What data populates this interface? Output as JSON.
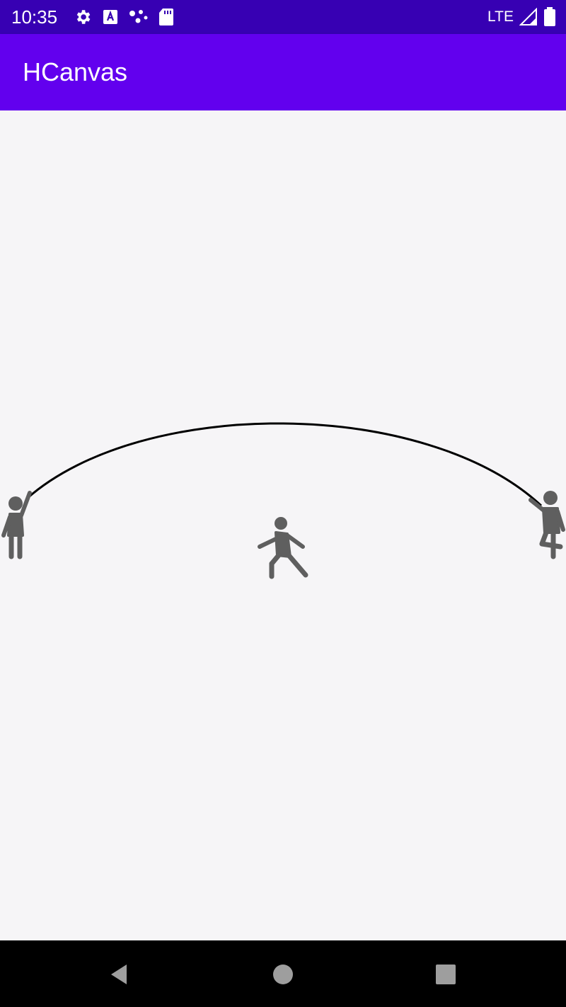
{
  "status_bar": {
    "time": "10:35",
    "network": "LTE",
    "left_icons": [
      "gear-icon",
      "a-badge-icon",
      "share-dots-icon",
      "sd-card-icon"
    ],
    "right_icons": [
      "signal-icon",
      "battery-icon"
    ]
  },
  "app_bar": {
    "title": "HCanvas",
    "color": "#6200ee"
  },
  "canvas": {
    "background": "#f6f5f7",
    "elements": [
      "rope",
      "person-left-holding-rope",
      "person-jumping",
      "person-right-holding-rope"
    ],
    "figure_color": "#5f5f5f",
    "rope_color": "#000000"
  },
  "nav_bar": {
    "buttons": [
      "back-icon",
      "home-icon",
      "recents-icon"
    ]
  }
}
